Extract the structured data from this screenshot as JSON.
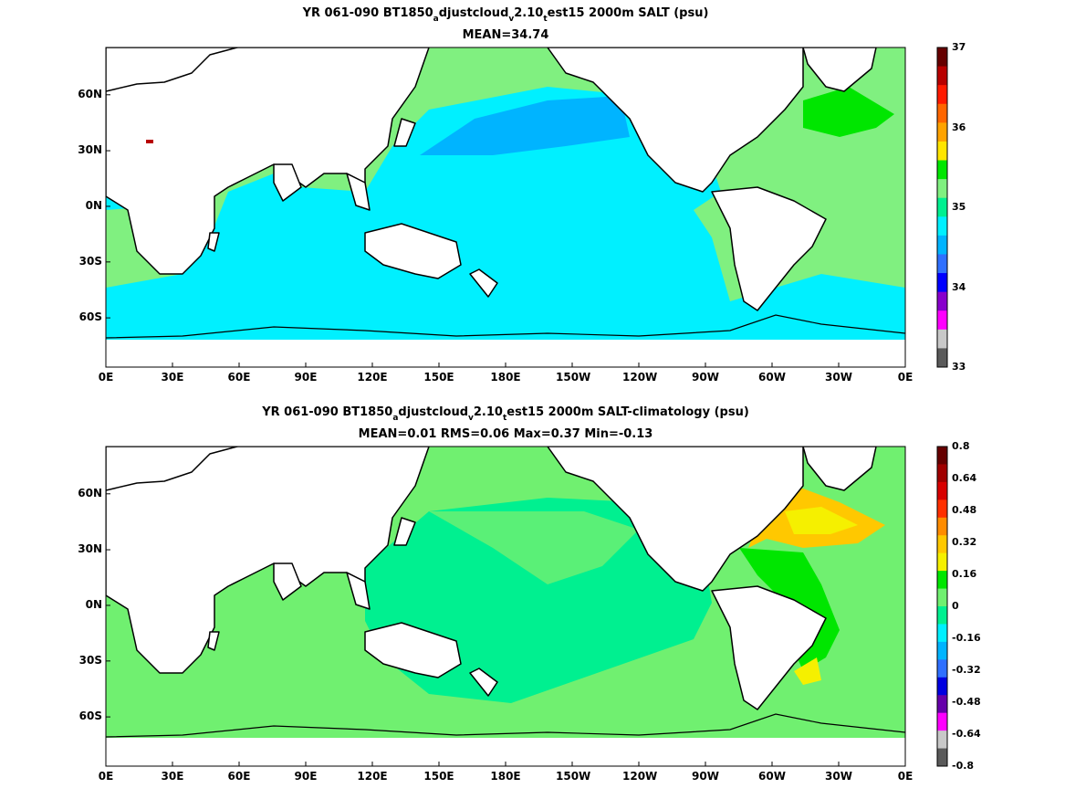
{
  "panel1": {
    "title_parts": [
      "YR 061-090 BT1850",
      "a",
      "djustcloud",
      "v",
      "2.10",
      "t",
      "est15 2000m SALT (psu)"
    ],
    "stats": "MEAN=34.74",
    "colorbar": {
      "ticks": [
        "37",
        "36",
        "35",
        "34",
        "33"
      ],
      "colors": [
        "#660000",
        "#b80000",
        "#ff1a00",
        "#ff6600",
        "#ffa300",
        "#ffe500",
        "#00e600",
        "#80f080",
        "#00f090",
        "#00f0ff",
        "#00b4ff",
        "#2f70ff",
        "#0000ff",
        "#8800cc",
        "#ff00ff",
        "#c8c8c8",
        "#5a5a5a"
      ]
    }
  },
  "panel2": {
    "title_parts": [
      "YR 061-090 BT1850",
      "a",
      "djustcloud",
      "v",
      "2.10",
      "t",
      "est15 2000m SALT-climatology (psu)"
    ],
    "stats": "MEAN=0.01   RMS=0.06   Max=0.37   Min=-0.13",
    "colorbar": {
      "ticks": [
        "0.8",
        "0.64",
        "0.48",
        "0.32",
        "0.16",
        "0",
        "-0.16",
        "-0.32",
        "-0.48",
        "-0.64",
        "-0.8"
      ],
      "colors": [
        "#660000",
        "#a00000",
        "#d80000",
        "#ff3000",
        "#ff8c00",
        "#ffc800",
        "#f5f000",
        "#00e600",
        "#70f070",
        "#00f090",
        "#00f0ff",
        "#00b4ff",
        "#2f70ff",
        "#0000e0",
        "#6600aa",
        "#ff00ff",
        "#c8c8c8",
        "#5a5a5a"
      ]
    }
  },
  "axes": {
    "x_ticks": [
      "0E",
      "30E",
      "60E",
      "90E",
      "120E",
      "150E",
      "180E",
      "150W",
      "120W",
      "90W",
      "60W",
      "30W",
      "0E"
    ],
    "y_ticks": [
      "60N",
      "30N",
      "0N",
      "30S",
      "60S"
    ]
  }
}
